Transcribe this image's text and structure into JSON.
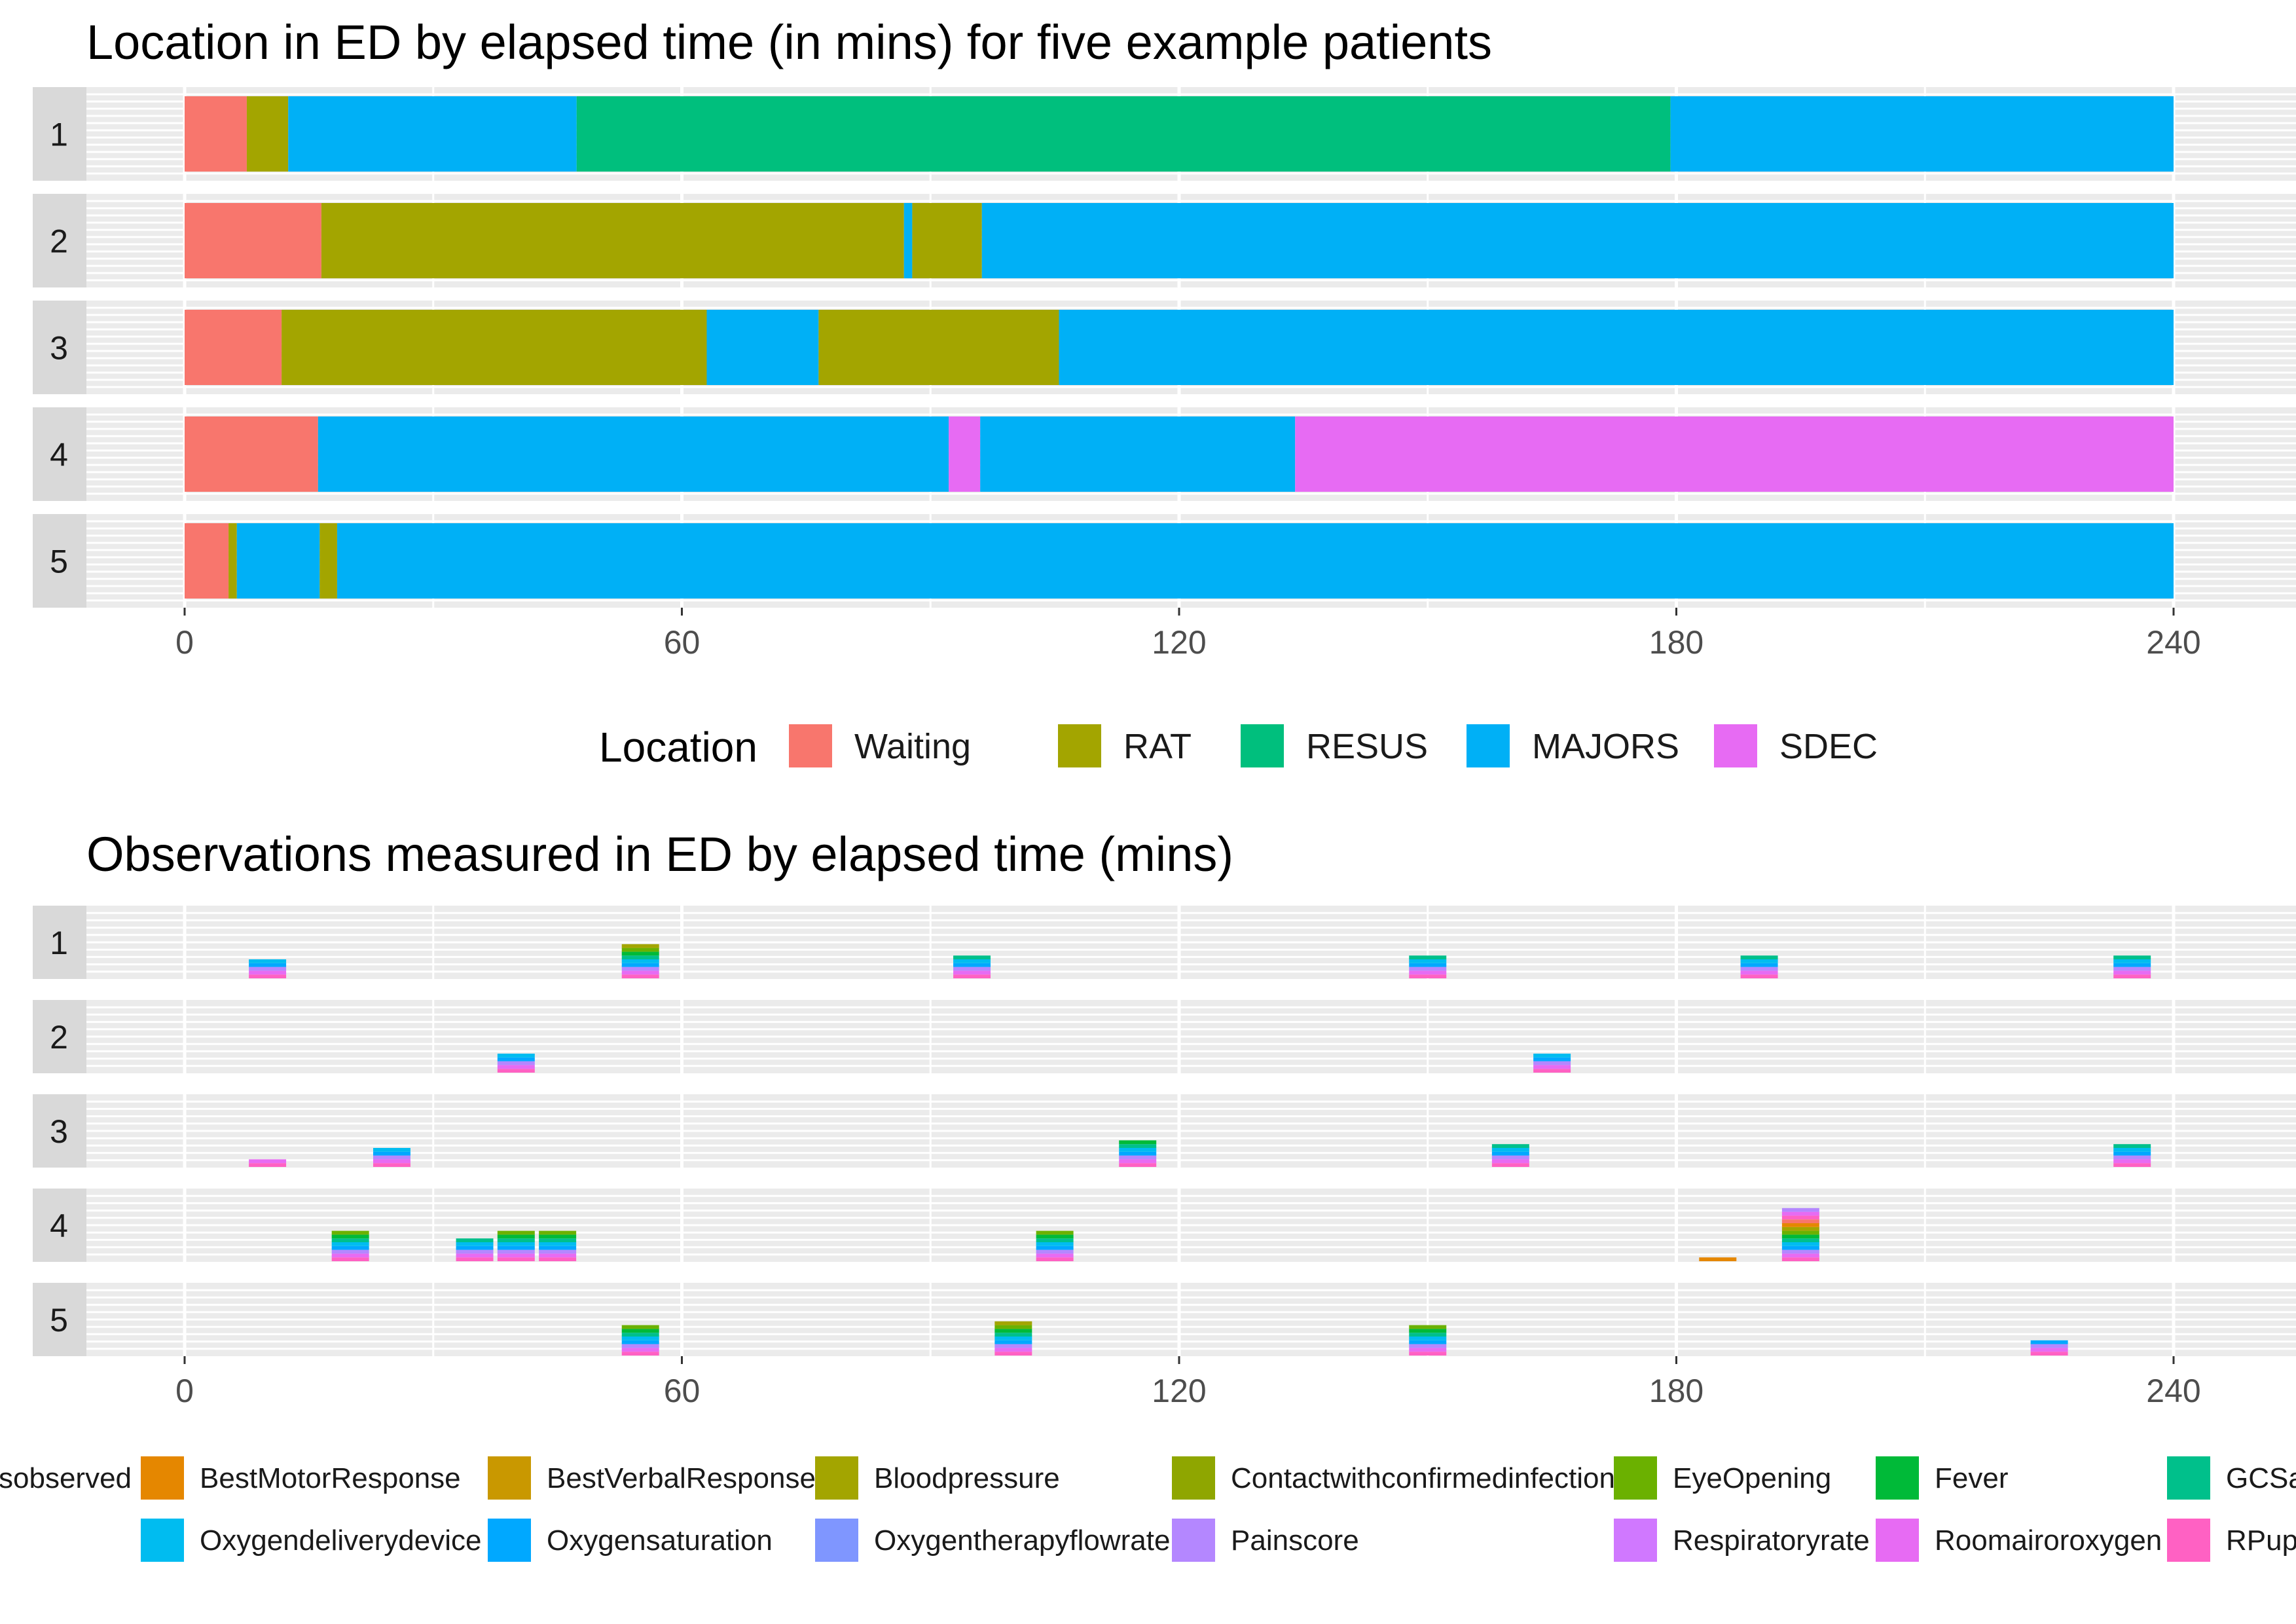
{
  "chart_data": [
    {
      "type": "bar",
      "subtype": "horizontal stacked timeline",
      "title": "Location in ED by elapsed time (in mins) for five example patients",
      "xlabel": "",
      "ylabel": "",
      "xlim": [
        -12,
        252
      ],
      "x_ticks": [
        0,
        60,
        120,
        180,
        240
      ],
      "x_tick_labels": [
        "0",
        "60",
        "120",
        "180",
        "240"
      ],
      "grid": true,
      "legend_title": "Location",
      "legend_position": "bottom",
      "colors": {
        "Waiting": "#F8766D",
        "RAT": "#A3A500",
        "RESUS": "#00BF7D",
        "MAJORS": "#00B0F6",
        "SDEC": "#E76BF3"
      },
      "legend_order": [
        "Waiting",
        "RAT",
        "RESUS",
        "MAJORS",
        "SDEC"
      ],
      "patients": [
        "1",
        "2",
        "3",
        "4",
        "5"
      ],
      "segments": [
        [
          {
            "location": "Waiting",
            "start": 0,
            "end": 7.5
          },
          {
            "location": "RAT",
            "start": 7.5,
            "end": 12.5
          },
          {
            "location": "MAJORS",
            "start": 12.5,
            "end": 47.3
          },
          {
            "location": "RESUS",
            "start": 47.3,
            "end": 179.3
          },
          {
            "location": "MAJORS",
            "start": 179.3,
            "end": 240
          }
        ],
        [
          {
            "location": "Waiting",
            "start": 0,
            "end": 16.5
          },
          {
            "location": "RAT",
            "start": 16.5,
            "end": 86.8
          },
          {
            "location": "MAJORS",
            "start": 86.8,
            "end": 87.8
          },
          {
            "location": "RAT",
            "start": 87.8,
            "end": 96.2
          },
          {
            "location": "MAJORS",
            "start": 96.2,
            "end": 240
          }
        ],
        [
          {
            "location": "Waiting",
            "start": 0,
            "end": 11.7
          },
          {
            "location": "RAT",
            "start": 11.7,
            "end": 63.0
          },
          {
            "location": "MAJORS",
            "start": 63.0,
            "end": 76.5
          },
          {
            "location": "RAT",
            "start": 76.5,
            "end": 105.5
          },
          {
            "location": "MAJORS",
            "start": 105.5,
            "end": 240
          }
        ],
        [
          {
            "location": "Waiting",
            "start": 0,
            "end": 16.1
          },
          {
            "location": "MAJORS",
            "start": 16.1,
            "end": 92.2
          },
          {
            "location": "SDEC",
            "start": 92.2,
            "end": 96.0
          },
          {
            "location": "MAJORS",
            "start": 96.0,
            "end": 134.0
          },
          {
            "location": "SDEC",
            "start": 134.0,
            "end": 240
          }
        ],
        [
          {
            "location": "Waiting",
            "start": 0,
            "end": 5.3
          },
          {
            "location": "RAT",
            "start": 5.3,
            "end": 6.3
          },
          {
            "location": "MAJORS",
            "start": 6.3,
            "end": 16.3
          },
          {
            "location": "RAT",
            "start": 16.3,
            "end": 18.4
          },
          {
            "location": "MAJORS",
            "start": 18.4,
            "end": 240
          }
        ]
      ]
    },
    {
      "type": "bar",
      "subtype": "stacked observation counts over time",
      "title": "Observations measured in ED by elapsed time (mins)",
      "xlabel": "",
      "ylabel": "",
      "xlim": [
        -12,
        252
      ],
      "x_ticks": [
        0,
        60,
        120,
        180,
        240
      ],
      "x_tick_labels": [
        "0",
        "60",
        "120",
        "180",
        "240"
      ],
      "grid": true,
      "legend_position": "bottom",
      "legend_entries": [
        {
          "label": "sobserved",
          "color": "#F8766D"
        },
        {
          "label": "BestMotorResponse",
          "color": "#E58700"
        },
        {
          "label": "BestVerbalResponse",
          "color": "#C99800"
        },
        {
          "label": "Bloodpressure",
          "color": "#A3A500"
        },
        {
          "label": "Contactwithconfirmedinfection",
          "color": "#8FA600"
        },
        {
          "label": "EyeOpening",
          "color": "#6BB100"
        },
        {
          "label": "Fever",
          "color": "#00BA38"
        },
        {
          "label": "GCSa",
          "color": "#00C08B"
        },
        {
          "label": "Oxygendeliverydevice",
          "color": "#00BCF0"
        },
        {
          "label": "Oxygensaturation",
          "color": "#00A8FF"
        },
        {
          "label": "Oxygentherapyflowrate",
          "color": "#7F96FF"
        },
        {
          "label": "Painscore",
          "color": "#B487FF"
        },
        {
          "label": "Respiratoryrate",
          "color": "#D078FF"
        },
        {
          "label": "Roomairoroxygen",
          "color": "#E76BF3"
        },
        {
          "label": "RPup",
          "color": "#FF61C3"
        }
      ],
      "stack_palette": [
        "#FF61C3",
        "#E76BF3",
        "#B487FF",
        "#00A8FF",
        "#00BCF0",
        "#00C08B",
        "#00BA38",
        "#6BB100",
        "#A3A500",
        "#E58700",
        "#F8766D"
      ],
      "bin_width": 4.5,
      "patients": [
        "1",
        "2",
        "3",
        "4",
        "5"
      ],
      "observations": [
        [
          {
            "x": 10,
            "count": 5
          },
          {
            "x": 55,
            "count": 9
          },
          {
            "x": 95,
            "count": 6
          },
          {
            "x": 150,
            "count": 6
          },
          {
            "x": 190,
            "count": 6
          },
          {
            "x": 235,
            "count": 6
          }
        ],
        [
          {
            "x": 40,
            "count": 5
          },
          {
            "x": 165,
            "count": 5
          }
        ],
        [
          {
            "x": 10,
            "count": 2
          },
          {
            "x": 25,
            "count": 5
          },
          {
            "x": 115,
            "count": 7
          },
          {
            "x": 160,
            "count": 6
          },
          {
            "x": 235,
            "count": 6
          }
        ],
        [
          {
            "x": 20,
            "count": 8
          },
          {
            "x": 35,
            "count": 6
          },
          {
            "x": 40,
            "count": 8
          },
          {
            "x": 45,
            "count": 8
          },
          {
            "x": 105,
            "count": 8
          },
          {
            "x": 185,
            "count": 1,
            "colors": [
              "#E58700"
            ]
          },
          {
            "x": 195,
            "count": 14
          }
        ],
        [
          {
            "x": 55,
            "count": 8
          },
          {
            "x": 100,
            "count": 9
          },
          {
            "x": 150,
            "count": 8
          },
          {
            "x": 225,
            "count": 4
          }
        ]
      ]
    }
  ]
}
